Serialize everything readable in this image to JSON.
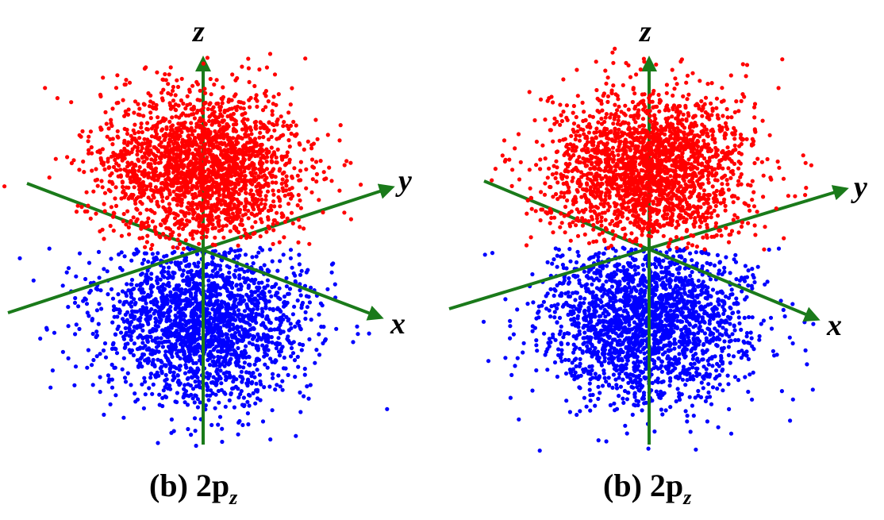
{
  "figure": {
    "panels": [
      {
        "caption": {
          "prefix": "(b) 2p",
          "subscript": "z"
        },
        "axes": {
          "z_label": "z",
          "y_label": "y",
          "x_label": "x"
        },
        "lobes": {
          "upper_color": "#ff0000",
          "lower_color": "#0000ff"
        }
      },
      {
        "caption": {
          "prefix": "(b) 2p",
          "subscript": "z"
        },
        "axes": {
          "z_label": "z",
          "y_label": "y",
          "x_label": "x"
        },
        "lobes": {
          "upper_color": "#ff0000",
          "lower_color": "#0000ff"
        }
      }
    ],
    "axis_color": "#1a7a1a"
  }
}
